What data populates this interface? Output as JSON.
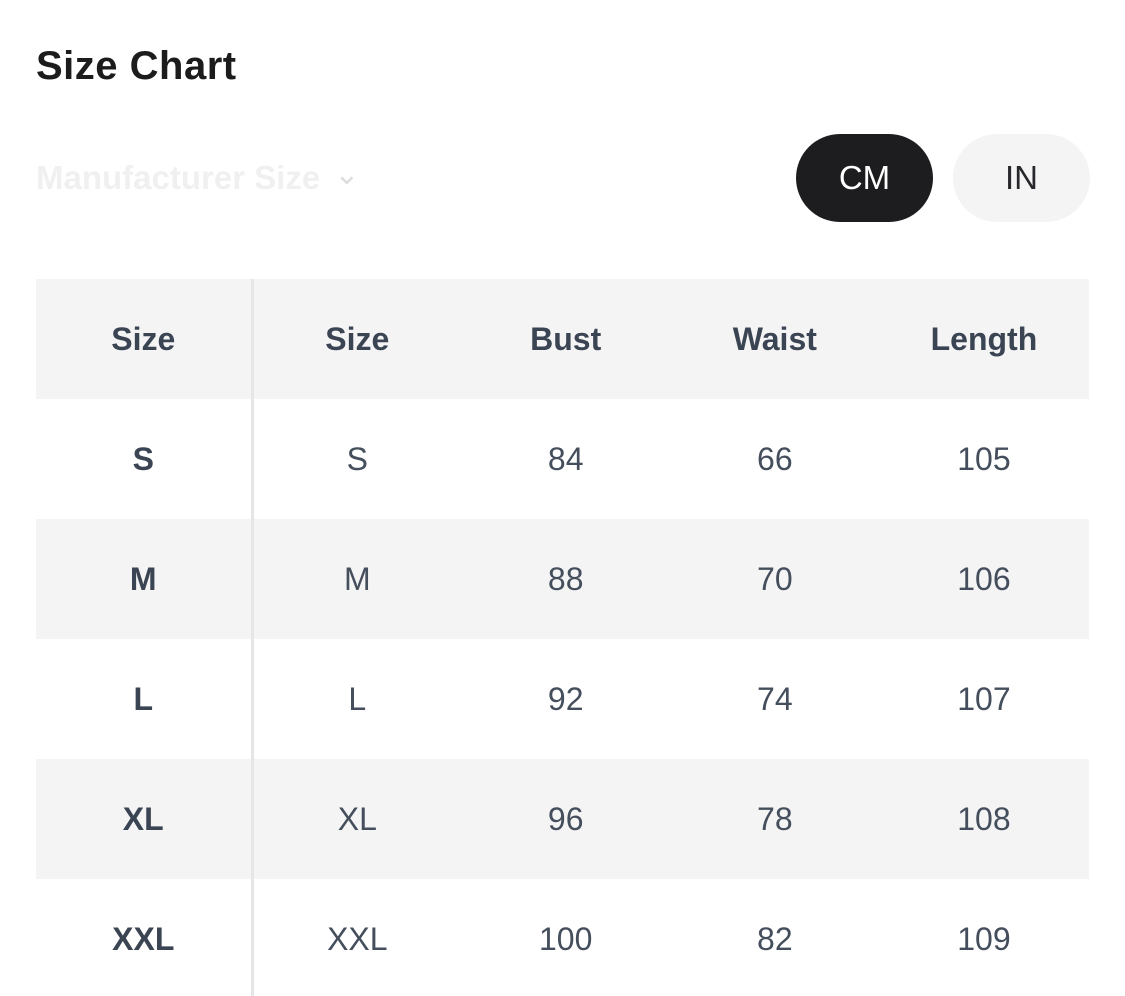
{
  "header": {
    "title": "Size Chart"
  },
  "manufacturer_size": {
    "label": "Manufacturer Size",
    "chevron_icon": "⌄"
  },
  "unit_toggle": {
    "selected": "CM",
    "options": [
      {
        "label": "CM",
        "selected": true
      },
      {
        "label": "IN",
        "selected": false
      }
    ]
  },
  "size_table": {
    "columns": [
      "Size",
      "Size",
      "Bust",
      "Waist",
      "Length"
    ],
    "rows": [
      [
        "S",
        "S",
        "84",
        "66",
        "105"
      ],
      [
        "M",
        "M",
        "88",
        "70",
        "106"
      ],
      [
        "L",
        "L",
        "92",
        "74",
        "107"
      ],
      [
        "XL",
        "XL",
        "96",
        "78",
        "108"
      ],
      [
        "XXL",
        "XXL",
        "100",
        "82",
        "109"
      ]
    ]
  },
  "colors": {
    "title_text": "#1c1c1c",
    "faded_label": "#f0f0f0",
    "faded_chevron": "#dddddd",
    "selected_pill_bg": "#1d1d1f",
    "selected_pill_text": "#ffffff",
    "unselected_pill_bg": "#f4f4f5",
    "unselected_pill_text": "#26282b",
    "row_stripe": "#f4f4f5",
    "header_text": "#3b4453",
    "table_text": "#454e5c",
    "divider": "#e5e6e8"
  }
}
